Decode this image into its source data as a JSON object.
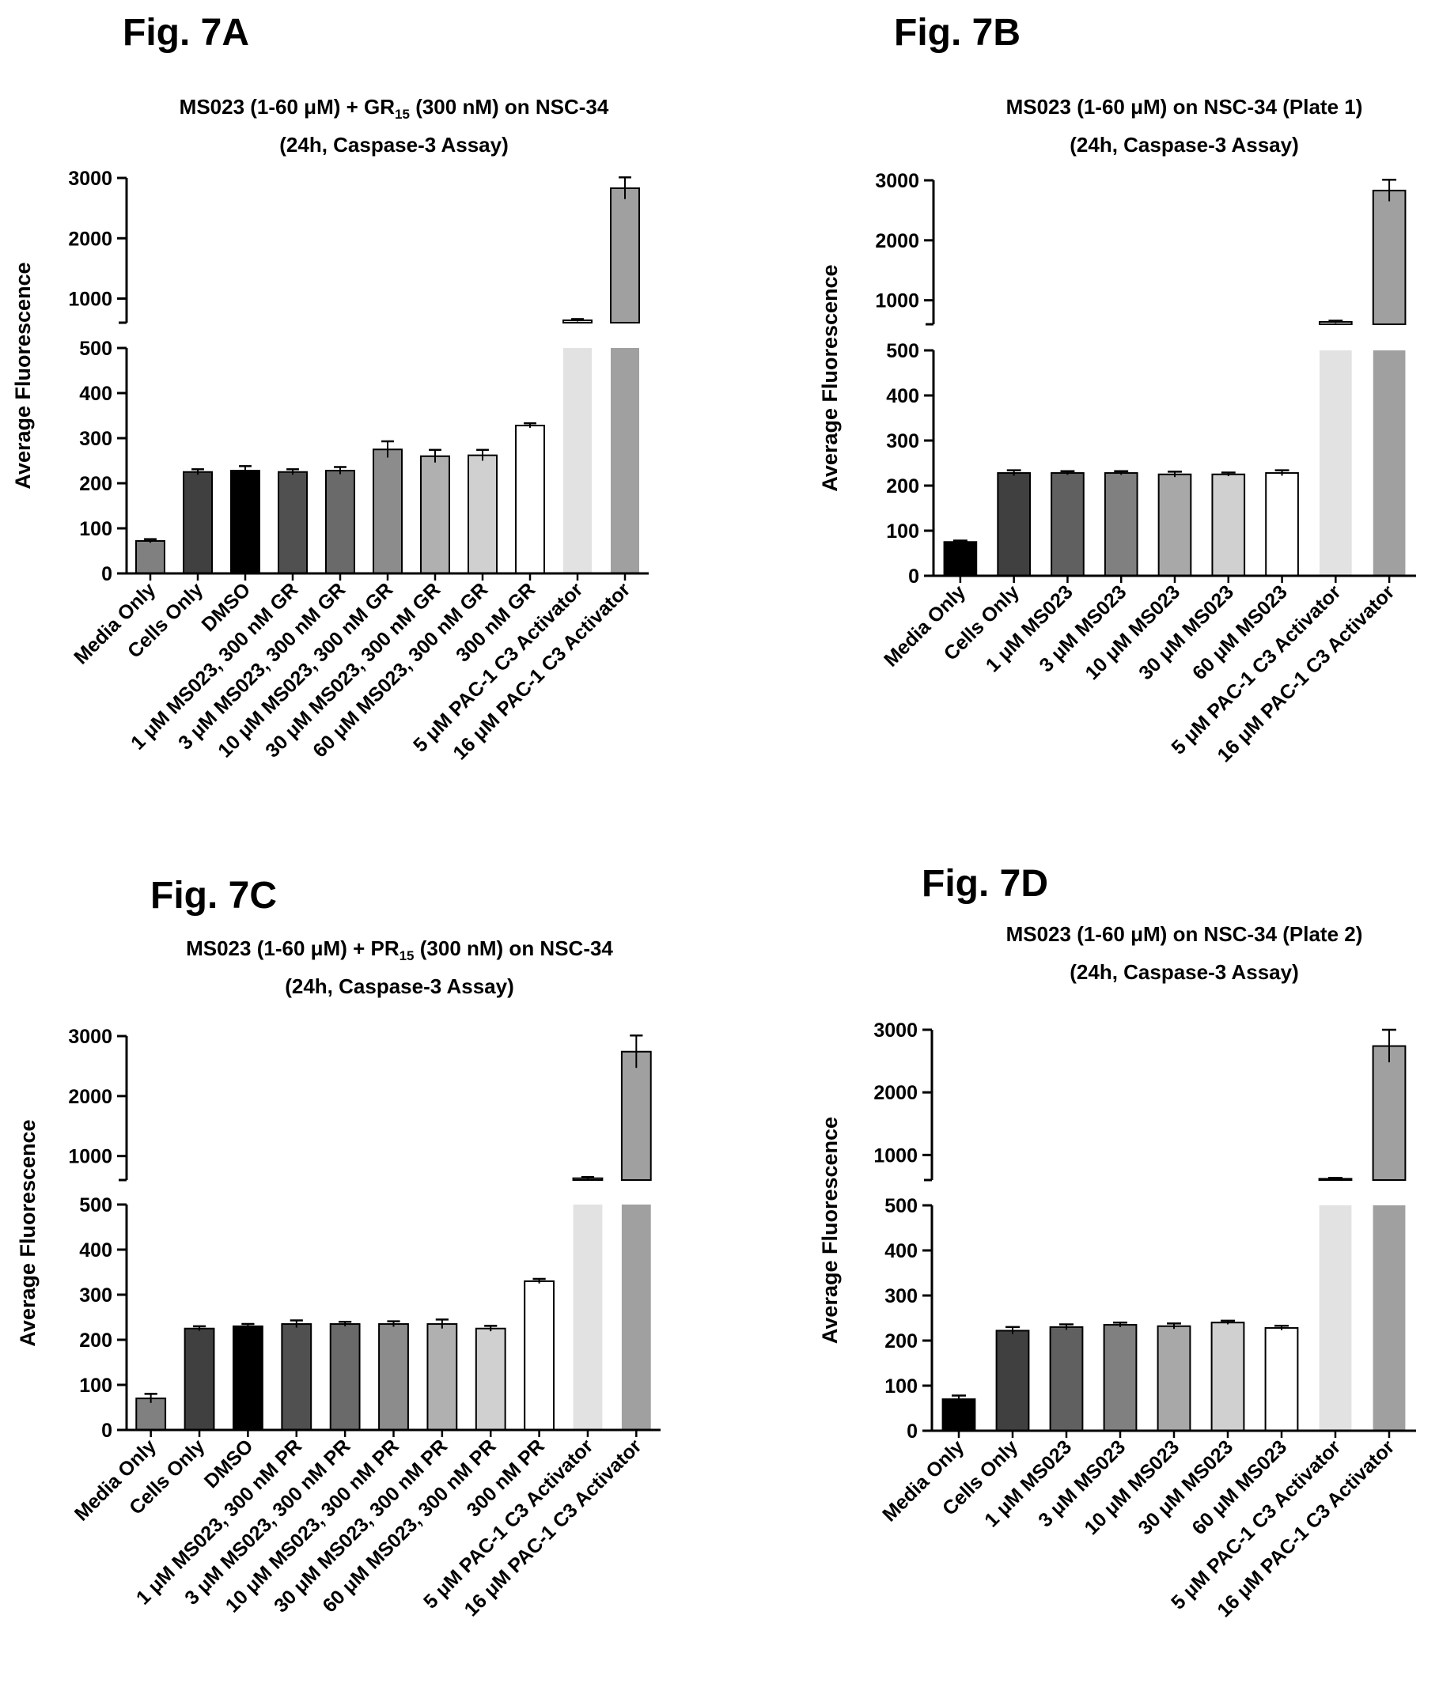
{
  "charts": [
    {
      "fig_label": "Fig. 7A",
      "title_prefix": "MS023 (1-60 μM) + GR",
      "title_sub": "15",
      "title_suffix": " (300 nM) on NSC-34",
      "title_line2": "(24h, Caspase-3 Assay)"
    },
    {
      "fig_label": "Fig. 7B",
      "title_prefix": "MS023 (1-60 μM) on NSC-34 (Plate 1)",
      "title_sub": "",
      "title_suffix": "",
      "title_line2": "(24h, Caspase-3 Assay)"
    },
    {
      "fig_label": "Fig. 7C",
      "title_prefix": "MS023 (1-60 μM) + PR",
      "title_sub": "15",
      "title_suffix": " (300 nM) on NSC-34",
      "title_line2": "(24h, Caspase-3 Assay)"
    },
    {
      "fig_label": "Fig. 7D",
      "title_prefix": "MS023 (1-60 μM) on NSC-34 (Plate 2)",
      "title_sub": "",
      "title_suffix": "",
      "title_line2": "(24h, Caspase-3 Assay)"
    }
  ],
  "chart_data": [
    {
      "type": "bar",
      "title": "MS023 (1-60 μM) + GR15 (300 nM) on NSC-34 (24h, Caspase-3 Assay)",
      "ylabel": "Average Fluorescence",
      "y_axis_break": true,
      "ylim_lower": [
        0,
        500
      ],
      "yticks_lower": [
        0,
        100,
        200,
        300,
        400,
        500
      ],
      "ylim_upper": [
        600,
        3000
      ],
      "yticks_upper": [
        1000,
        2000,
        3000
      ],
      "categories": [
        "Media Only",
        "Cells Only",
        "DMSO",
        "1 μM MS023, 300 nM GR",
        "3 μM MS023, 300 nM GR",
        "10 μM MS023, 300 nM GR",
        "30 μM MS023, 300 nM GR",
        "60 μM MS023, 300 nM GR",
        "300 nM GR",
        "5 μM PAC-1 C3 Activator",
        "16 μM PAC-1 C3 Activator"
      ],
      "values": [
        72,
        225,
        228,
        225,
        228,
        275,
        260,
        262,
        328,
        640,
        2830
      ],
      "errors": [
        4,
        6,
        10,
        6,
        8,
        18,
        14,
        12,
        5,
        20,
        180
      ],
      "bar_colors": [
        "#808080",
        "#404040",
        "#000000",
        "#505050",
        "#6a6a6a",
        "#8c8c8c",
        "#b0b0b0",
        "#d0d0d0",
        "#ffffff",
        "#e2e2e2",
        "#a0a0a0"
      ]
    },
    {
      "type": "bar",
      "title": "MS023 (1-60 μM) on NSC-34 (Plate 1) (24h, Caspase-3 Assay)",
      "ylabel": "Average Fluorescence",
      "y_axis_break": true,
      "ylim_lower": [
        0,
        500
      ],
      "yticks_lower": [
        0,
        100,
        200,
        300,
        400,
        500
      ],
      "ylim_upper": [
        600,
        3000
      ],
      "yticks_upper": [
        1000,
        2000,
        3000
      ],
      "categories": [
        "Media Only",
        "Cells Only",
        "1 μM MS023",
        "3 μM MS023",
        "10 μM MS023",
        "30 μM MS023",
        "60 μM MS023",
        "5 μM PAC-1 C3 Activator",
        "16 μM PAC-1 C3 Activator"
      ],
      "values": [
        75,
        228,
        228,
        228,
        225,
        225,
        228,
        640,
        2830
      ],
      "errors": [
        3,
        6,
        4,
        4,
        6,
        4,
        6,
        20,
        180
      ],
      "bar_colors": [
        "#000000",
        "#404040",
        "#606060",
        "#808080",
        "#a8a8a8",
        "#d0d0d0",
        "#ffffff",
        "#e2e2e2",
        "#a0a0a0"
      ]
    },
    {
      "type": "bar",
      "title": "MS023 (1-60 μM) + PR15 (300 nM) on NSC-34 (24h, Caspase-3 Assay)",
      "ylabel": "Average Fluorescence",
      "y_axis_break": true,
      "ylim_lower": [
        0,
        500
      ],
      "yticks_lower": [
        0,
        100,
        200,
        300,
        400,
        500
      ],
      "ylim_upper": [
        600,
        3000
      ],
      "yticks_upper": [
        1000,
        2000,
        3000
      ],
      "categories": [
        "Media Only",
        "Cells Only",
        "DMSO",
        "1 μM MS023, 300 nM PR",
        "3 μM MS023, 300 nM PR",
        "10 μM MS023, 300 nM PR",
        "30 μM MS023, 300 nM PR",
        "60 μM MS023, 300 nM PR",
        "300 nM PR",
        "5 μM PAC-1 C3 Activator",
        "16 μM PAC-1 C3 Activator"
      ],
      "values": [
        70,
        225,
        230,
        235,
        235,
        235,
        235,
        225,
        330,
        630,
        2740
      ],
      "errors": [
        10,
        5,
        5,
        8,
        5,
        6,
        10,
        6,
        5,
        20,
        270
      ],
      "bar_colors": [
        "#808080",
        "#404040",
        "#000000",
        "#505050",
        "#6a6a6a",
        "#8c8c8c",
        "#b0b0b0",
        "#d0d0d0",
        "#ffffff",
        "#e2e2e2",
        "#a0a0a0"
      ]
    },
    {
      "type": "bar",
      "title": "MS023 (1-60 μM) on NSC-34 (Plate 2) (24h, Caspase-3 Assay)",
      "ylabel": "Average Fluorescence",
      "y_axis_break": true,
      "ylim_lower": [
        0,
        500
      ],
      "yticks_lower": [
        0,
        100,
        200,
        300,
        400,
        500
      ],
      "ylim_upper": [
        600,
        3000
      ],
      "yticks_upper": [
        1000,
        2000,
        3000
      ],
      "categories": [
        "Media Only",
        "Cells Only",
        "1 μM MS023",
        "3 μM MS023",
        "10 μM MS023",
        "30 μM MS023",
        "60 μM MS023",
        "5 μM PAC-1 C3 Activator",
        "16 μM PAC-1 C3 Activator"
      ],
      "values": [
        70,
        222,
        230,
        235,
        232,
        240,
        228,
        620,
        2740
      ],
      "errors": [
        8,
        8,
        6,
        5,
        6,
        4,
        5,
        15,
        260
      ],
      "bar_colors": [
        "#000000",
        "#404040",
        "#606060",
        "#808080",
        "#a8a8a8",
        "#d0d0d0",
        "#ffffff",
        "#e2e2e2",
        "#a0a0a0"
      ]
    }
  ]
}
